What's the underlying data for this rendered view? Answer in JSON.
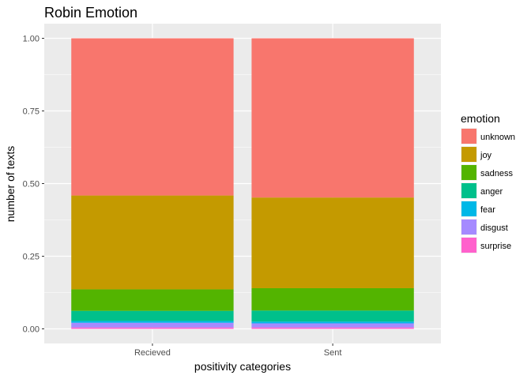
{
  "chart_data": {
    "type": "bar",
    "stacked": true,
    "title": "Robin Emotion",
    "xlabel": "positivity categories",
    "ylabel": "number of texts",
    "categories": [
      "Recieved",
      "Sent"
    ],
    "ylim": [
      0,
      1.0
    ],
    "yticks": [
      0.0,
      0.25,
      0.5,
      0.75,
      1.0
    ],
    "ytick_labels": [
      "0.00",
      "0.25",
      "0.50",
      "0.75",
      "1.00"
    ],
    "grid": true,
    "legend": {
      "title": "emotion",
      "position": "right"
    },
    "series": [
      {
        "name": "surprise",
        "color": "#FF61CC",
        "values": [
          0.005,
          0.005
        ]
      },
      {
        "name": "disgust",
        "color": "#A58AFF",
        "values": [
          0.016,
          0.014
        ]
      },
      {
        "name": "fear",
        "color": "#00B8E7",
        "values": [
          0.006,
          0.006
        ]
      },
      {
        "name": "anger",
        "color": "#00C08B",
        "values": [
          0.035,
          0.038
        ]
      },
      {
        "name": "sadness",
        "color": "#53B400",
        "values": [
          0.074,
          0.077
        ]
      },
      {
        "name": "joy",
        "color": "#C49A00",
        "values": [
          0.323,
          0.312
        ]
      },
      {
        "name": "unknown",
        "color": "#F8766D",
        "values": [
          0.541,
          0.548
        ]
      }
    ]
  }
}
